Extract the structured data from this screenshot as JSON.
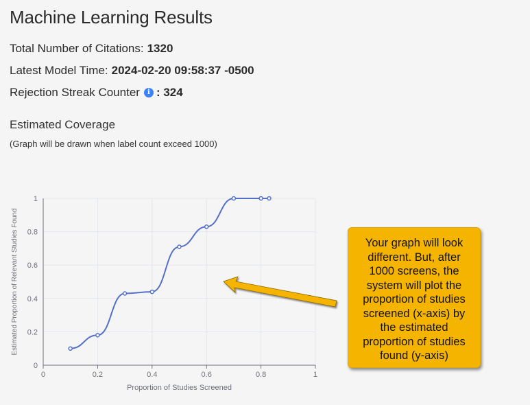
{
  "page": {
    "title": "Machine Learning Results",
    "stats": {
      "citations_label": "Total Number of Citations:",
      "citations_value": "1320",
      "model_time_label": "Latest Model Time:",
      "model_time_value": "2024-02-20 09:58:37 -0500",
      "streak_label": "Rejection Streak Counter",
      "streak_icon": "info-icon",
      "streak_value": ": 324"
    },
    "coverage": {
      "title": "Estimated Coverage",
      "note": "(Graph will be drawn when label count exceed 1000)"
    },
    "callout": {
      "text": "Your graph will look different. But, after 1000 screens, the system will plot the proportion of studies screened (x-axis) by the estimated proportion of studies found (y-axis)",
      "color": "#f5b400"
    }
  },
  "chart_data": {
    "type": "line",
    "xlabel": "Proportion of Studies Screened",
    "ylabel": "Estimated Proportion of Relevant Studies Found",
    "xlim": [
      0,
      1
    ],
    "ylim": [
      0,
      1
    ],
    "xticks": [
      "0",
      "0.2",
      "0.4",
      "0.6",
      "0.8",
      "1"
    ],
    "yticks": [
      "0",
      "0.2",
      "0.4",
      "0.6",
      "0.8",
      "1"
    ],
    "grid": true,
    "series": [
      {
        "color": "#5470c6",
        "x": [
          0.1,
          0.2,
          0.3,
          0.4,
          0.5,
          0.6,
          0.7,
          0.8,
          0.83
        ],
        "y": [
          0.1,
          0.18,
          0.43,
          0.44,
          0.71,
          0.83,
          1.0,
          1.0,
          1.0
        ]
      }
    ]
  }
}
